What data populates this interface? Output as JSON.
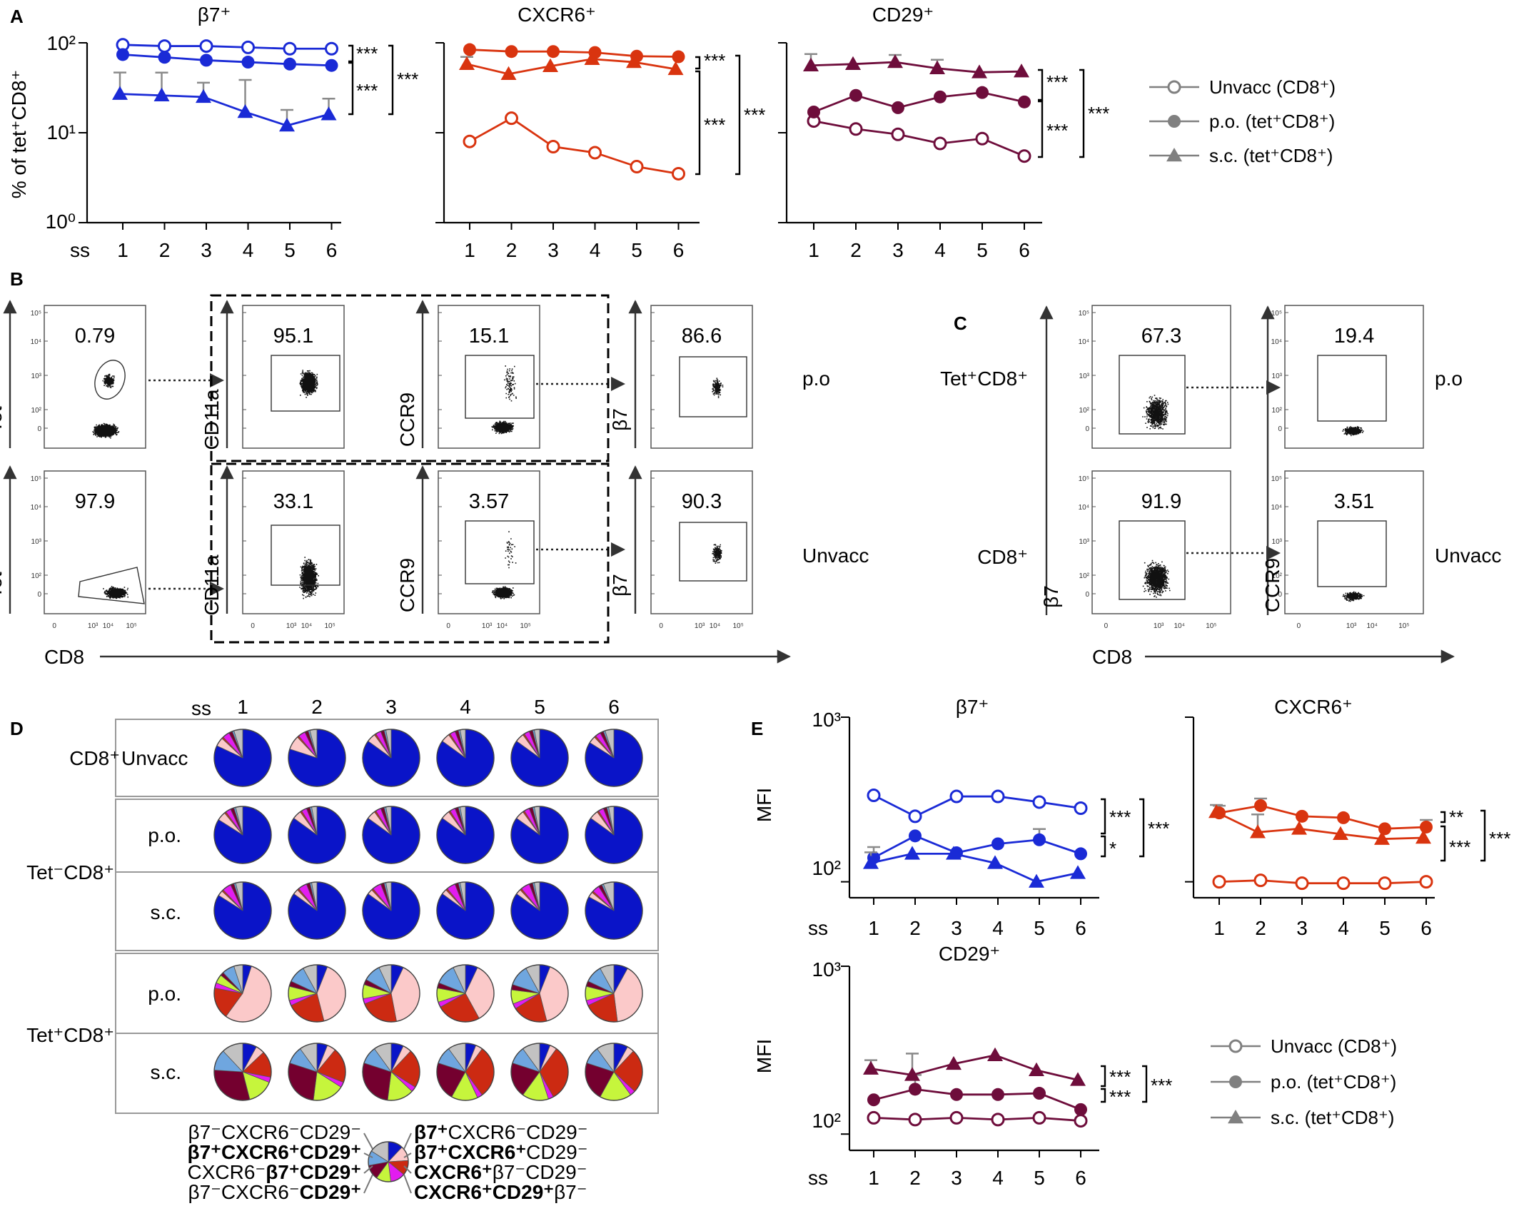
{
  "colors": {
    "b7": "#1a2ad6",
    "cxcr6": "#d9340f",
    "cd29": "#6e0d3b",
    "legend_gray": "#808080",
    "pie": [
      "#0a14c8",
      "#fbc9c9",
      "#cc2a12",
      "#e31cf0",
      "#c6f53c",
      "#74002f",
      "#6fa6df",
      "#c2c2c2"
    ]
  },
  "panels": {
    "A": "A",
    "B": "B",
    "C": "C",
    "D": "D",
    "E": "E"
  },
  "panelA": {
    "ylabel": "% of tet⁺CD8⁺",
    "xlabel": "ss",
    "yticks": [
      "10⁰",
      "10¹",
      "10²"
    ],
    "xticks": [
      "1",
      "2",
      "3",
      "4",
      "5",
      "6"
    ],
    "titles": [
      "β7⁺",
      "CXCR6⁺",
      "CD29⁺"
    ],
    "stars": "***"
  },
  "panelE": {
    "ylabel": "MFI",
    "xlabel": "ss",
    "yticks": [
      "10²",
      "10³"
    ],
    "xticks": [
      "1",
      "2",
      "3",
      "4",
      "5",
      "6"
    ],
    "titles": [
      "β7⁺",
      "CXCR6⁺",
      "CD29⁺"
    ],
    "sig_b7": [
      "***",
      "*",
      "***"
    ],
    "sig_cxcr6": [
      "**",
      "***",
      "***"
    ],
    "sig_cd29": [
      "***",
      "***",
      "***"
    ]
  },
  "legend": {
    "items": [
      "Unvacc (CD8⁺)",
      "p.o. (tet⁺CD8⁺)",
      "s.c. (tet⁺CD8⁺)"
    ]
  },
  "chart_data": [
    {
      "type": "line",
      "panel": "A",
      "title": "β7⁺",
      "ylabel": "% of tet⁺CD8⁺",
      "xlabel": "ss",
      "yscale": "log",
      "ylim": [
        1,
        100
      ],
      "x": [
        1,
        2,
        3,
        4,
        5,
        6
      ],
      "series": [
        {
          "name": "Unvacc (CD8⁺)",
          "values": [
            95,
            92,
            92,
            89,
            86,
            86
          ]
        },
        {
          "name": "p.o. (tet⁺CD8⁺)",
          "values": [
            74,
            69,
            64,
            61,
            58,
            56
          ]
        },
        {
          "name": "s.c. (tet⁺CD8⁺)",
          "values": [
            27,
            26,
            25,
            17,
            12,
            16
          ]
        }
      ]
    },
    {
      "type": "line",
      "panel": "A",
      "title": "CXCR6⁺",
      "yscale": "log",
      "ylim": [
        1,
        100
      ],
      "x": [
        1,
        2,
        3,
        4,
        5,
        6
      ],
      "series": [
        {
          "name": "Unvacc (CD8⁺)",
          "values": [
            8,
            14.5,
            7,
            6,
            4.2,
            3.5
          ]
        },
        {
          "name": "p.o. (tet⁺CD8⁺)",
          "values": [
            84,
            80,
            80,
            78,
            71,
            70
          ]
        },
        {
          "name": "s.c. (tet⁺CD8⁺)",
          "values": [
            58,
            45,
            55,
            66,
            61,
            51
          ]
        }
      ]
    },
    {
      "type": "line",
      "panel": "A",
      "title": "CD29⁺",
      "yscale": "log",
      "ylim": [
        1,
        100
      ],
      "x": [
        1,
        2,
        3,
        4,
        5,
        6
      ],
      "series": [
        {
          "name": "Unvacc (CD8⁺)",
          "values": [
            13.5,
            11,
            9.6,
            7.6,
            8.6,
            5.5
          ]
        },
        {
          "name": "p.o. (tet⁺CD8⁺)",
          "values": [
            17,
            26,
            19,
            25,
            28,
            22
          ]
        },
        {
          "name": "s.c. (tet⁺CD8⁺)",
          "values": [
            56,
            58,
            61,
            52,
            47,
            48
          ]
        }
      ]
    },
    {
      "type": "line",
      "panel": "E",
      "title": "β7⁺",
      "ylabel": "MFI",
      "xlabel": "ss",
      "yscale": "log",
      "ylim": [
        80,
        1000
      ],
      "x": [
        1,
        2,
        3,
        4,
        5,
        6
      ],
      "series": [
        {
          "name": "Unvacc (CD8⁺)",
          "values": [
            335,
            250,
            330,
            330,
            305,
            280
          ]
        },
        {
          "name": "p.o. (tet⁺CD8⁺)",
          "values": [
            140,
            190,
            150,
            170,
            180,
            148
          ]
        },
        {
          "name": "s.c. (tet⁺CD8⁺)",
          "values": [
            130,
            148,
            148,
            130,
            100,
            113
          ]
        }
      ]
    },
    {
      "type": "line",
      "panel": "E",
      "title": "CXCR6⁺",
      "yscale": "log",
      "ylim": [
        80,
        1000
      ],
      "x": [
        1,
        2,
        3,
        4,
        5,
        6
      ],
      "series": [
        {
          "name": "Unvacc (CD8⁺)",
          "values": [
            100,
            102,
            98,
            98,
            98,
            100
          ]
        },
        {
          "name": "p.o. (tet⁺CD8⁺)",
          "values": [
            262,
            290,
            250,
            245,
            210,
            215
          ]
        },
        {
          "name": "s.c. (tet⁺CD8⁺)",
          "values": [
            265,
            200,
            210,
            195,
            182,
            185
          ]
        }
      ]
    },
    {
      "type": "line",
      "panel": "E",
      "title": "CD29⁺",
      "ylabel": "MFI",
      "xlabel": "ss",
      "yscale": "log",
      "ylim": [
        80,
        1000
      ],
      "x": [
        1,
        2,
        3,
        4,
        5,
        6
      ],
      "series": [
        {
          "name": "Unvacc (CD8⁺)",
          "values": [
            125,
            122,
            125,
            122,
            125,
            120
          ]
        },
        {
          "name": "p.o. (tet⁺CD8⁺)",
          "values": [
            160,
            185,
            172,
            172,
            175,
            140
          ]
        },
        {
          "name": "s.c. (tet⁺CD8⁺)",
          "values": [
            245,
            225,
            262,
            295,
            240,
            210
          ]
        }
      ]
    },
    {
      "type": "pie",
      "panel": "D",
      "categories": [
        "β7⁺CXCR6⁻CD29⁻",
        "β7⁺CXCR6⁺CD29⁻",
        "CXCR6⁺β7⁻CD29⁻",
        "CXCR6⁺CD29⁺β7⁻",
        "β7⁻CXCR6⁻CD29⁺",
        "CXCR6⁻β7⁺CD29⁺",
        "β7⁺CXCR6⁺CD29⁺",
        "β7⁻CXCR6⁻CD29⁻"
      ],
      "row_labels": [
        "Unvacc",
        "p.o.",
        "s.c.",
        "p.o.",
        "s.c."
      ],
      "group_labels": [
        "CD8⁺",
        "Tet⁻CD8⁺",
        "Tet⁺CD8⁺"
      ],
      "columns_label": "ss",
      "columns": [
        "1",
        "2",
        "3",
        "4",
        "5",
        "6"
      ],
      "rows": [
        {
          "name": "CD8⁺ Unvacc",
          "values": [
            [
              82,
              5,
              1,
              4,
              0,
              2,
              1,
              5
            ],
            [
              80,
              8,
              1,
              4,
              0,
              2,
              1,
              4
            ],
            [
              85,
              5,
              1,
              3,
              0,
              2,
              1,
              3
            ],
            [
              85,
              5,
              1,
              3,
              0,
              2,
              1,
              3
            ],
            [
              85,
              5,
              1,
              3,
              0,
              2,
              1,
              3
            ],
            [
              84,
              4,
              1,
              3,
              0,
              2,
              1,
              5
            ]
          ]
        },
        {
          "name": "Tet⁻CD8⁺ p.o.",
          "values": [
            [
              84,
              5,
              1,
              3,
              0,
              2,
              1,
              4
            ],
            [
              85,
              5,
              1,
              3,
              0,
              2,
              1,
              3
            ],
            [
              85,
              5,
              1,
              3,
              0,
              2,
              1,
              3
            ],
            [
              85,
              5,
              1,
              3,
              0,
              2,
              1,
              3
            ],
            [
              85,
              5,
              1,
              3,
              0,
              2,
              1,
              3
            ],
            [
              85,
              5,
              1,
              3,
              0,
              2,
              1,
              3
            ]
          ]
        },
        {
          "name": "Tet⁻CD8⁺ s.c.",
          "values": [
            [
              84,
              3,
              1,
              5,
              0,
              2,
              1,
              4
            ],
            [
              85,
              3,
              1,
              5,
              0,
              2,
              1,
              3
            ],
            [
              85,
              3,
              1,
              5,
              0,
              2,
              1,
              3
            ],
            [
              85,
              3,
              1,
              5,
              0,
              2,
              1,
              3
            ],
            [
              85,
              3,
              1,
              5,
              0,
              2,
              1,
              3
            ],
            [
              83,
              3,
              1,
              4,
              0,
              2,
              1,
              6
            ]
          ]
        },
        {
          "name": "Tet⁺CD8⁺ p.o.",
          "values": [
            [
              5,
              55,
              18,
              3,
              5,
              2,
              7,
              5
            ],
            [
              6,
              40,
              22,
              3,
              8,
              3,
              10,
              8
            ],
            [
              7,
              40,
              22,
              3,
              8,
              3,
              10,
              7
            ],
            [
              7,
              35,
              25,
              3,
              8,
              3,
              12,
              7
            ],
            [
              6,
              40,
              20,
              3,
              8,
              3,
              12,
              8
            ],
            [
              8,
              40,
              20,
              3,
              8,
              3,
              10,
              8
            ]
          ]
        },
        {
          "name": "Tet⁺CD8⁺ s.c.",
          "values": [
            [
              8,
              5,
              15,
              3,
              15,
              30,
              12,
              12
            ],
            [
              6,
              5,
              20,
              3,
              18,
              28,
              10,
              10
            ],
            [
              7,
              5,
              22,
              3,
              15,
              28,
              10,
              10
            ],
            [
              6,
              4,
              30,
              3,
              15,
              22,
              10,
              10
            ],
            [
              6,
              4,
              32,
              3,
              15,
              20,
              10,
              10
            ],
            [
              8,
              4,
              25,
              3,
              18,
              22,
              10,
              10
            ]
          ]
        }
      ]
    }
  ],
  "panelB": {
    "gate_values": [
      [
        "0.79",
        "95.1",
        "15.1",
        "86.6"
      ],
      [
        "97.9",
        "33.1",
        "3.57",
        "90.3"
      ]
    ],
    "y_labels": [
      "Tet",
      "CD11a",
      "CCR9",
      "β7"
    ],
    "x_label": "CD8",
    "row_labels": [
      "p.o",
      "Unvacc"
    ],
    "y_ticks": [
      "10⁵",
      "10⁴",
      "10³",
      "10²",
      "0"
    ],
    "x_ticks": [
      "0",
      "10³",
      "10⁴",
      "10⁵"
    ]
  },
  "panelC": {
    "gate_values": [
      [
        "67.3",
        "19.4"
      ],
      [
        "91.9",
        "3.51"
      ]
    ],
    "row_labels_left": [
      "Tet⁺CD8⁺",
      "CD8⁺"
    ],
    "row_labels_right": [
      "p.o",
      "Unvacc"
    ],
    "y_labels": [
      "β7",
      "CCR9"
    ],
    "x_label": "CD8"
  },
  "panelD_legend": {
    "left": [
      {
        "parts": [
          [
            "β7⁻CXCR6⁻CD29⁻",
            false
          ]
        ]
      },
      {
        "parts": [
          [
            "β7⁺CXCR6⁺CD29⁺",
            true
          ]
        ]
      },
      {
        "parts": [
          [
            "CXCR6⁻",
            false
          ],
          [
            "β7⁺CD29⁺",
            true
          ]
        ]
      },
      {
        "parts": [
          [
            "β7⁻CXCR6⁻",
            false
          ],
          [
            "CD29⁺",
            true
          ]
        ]
      }
    ],
    "right": [
      {
        "parts": [
          [
            "β7⁺",
            true
          ],
          [
            "CXCR6⁻CD29⁻",
            false
          ]
        ]
      },
      {
        "parts": [
          [
            "β7⁺CXCR6⁺",
            true
          ],
          [
            "CD29⁻",
            false
          ]
        ]
      },
      {
        "parts": [
          [
            "CXCR6⁺",
            true
          ],
          [
            "β7⁻CD29⁻",
            false
          ]
        ]
      },
      {
        "parts": [
          [
            "CXCR6⁺CD29⁺",
            true
          ],
          [
            "β7⁻",
            false
          ]
        ]
      }
    ]
  }
}
